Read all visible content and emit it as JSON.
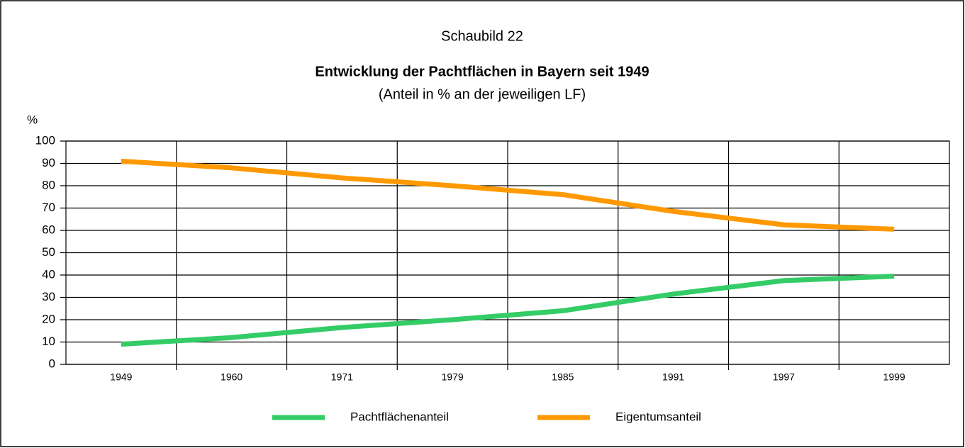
{
  "chart_data": {
    "type": "line",
    "title": "Schaubild 22",
    "subtitle": "Entwicklung der Pachtflächen in Bayern seit 1949",
    "note": "(Anteil in % an der jeweiligen LF)",
    "y_label": "%",
    "categories": [
      "1949",
      "1960",
      "1971",
      "1979",
      "1985",
      "1991",
      "1997",
      "1999"
    ],
    "series": [
      {
        "name": "Pachtflächenanteil",
        "color": "#33cc66",
        "values": [
          9,
          12,
          16.5,
          20,
          24,
          31.5,
          37.5,
          39.5
        ]
      },
      {
        "name": "Eigentumsanteil",
        "color": "#ff9900",
        "values": [
          91,
          88,
          83.5,
          80,
          76,
          68.5,
          62.5,
          60.5
        ]
      }
    ],
    "ylim": [
      0,
      100
    ],
    "yticks": [
      0,
      10,
      20,
      30,
      40,
      50,
      60,
      70,
      80,
      90,
      100
    ],
    "grid": true
  }
}
